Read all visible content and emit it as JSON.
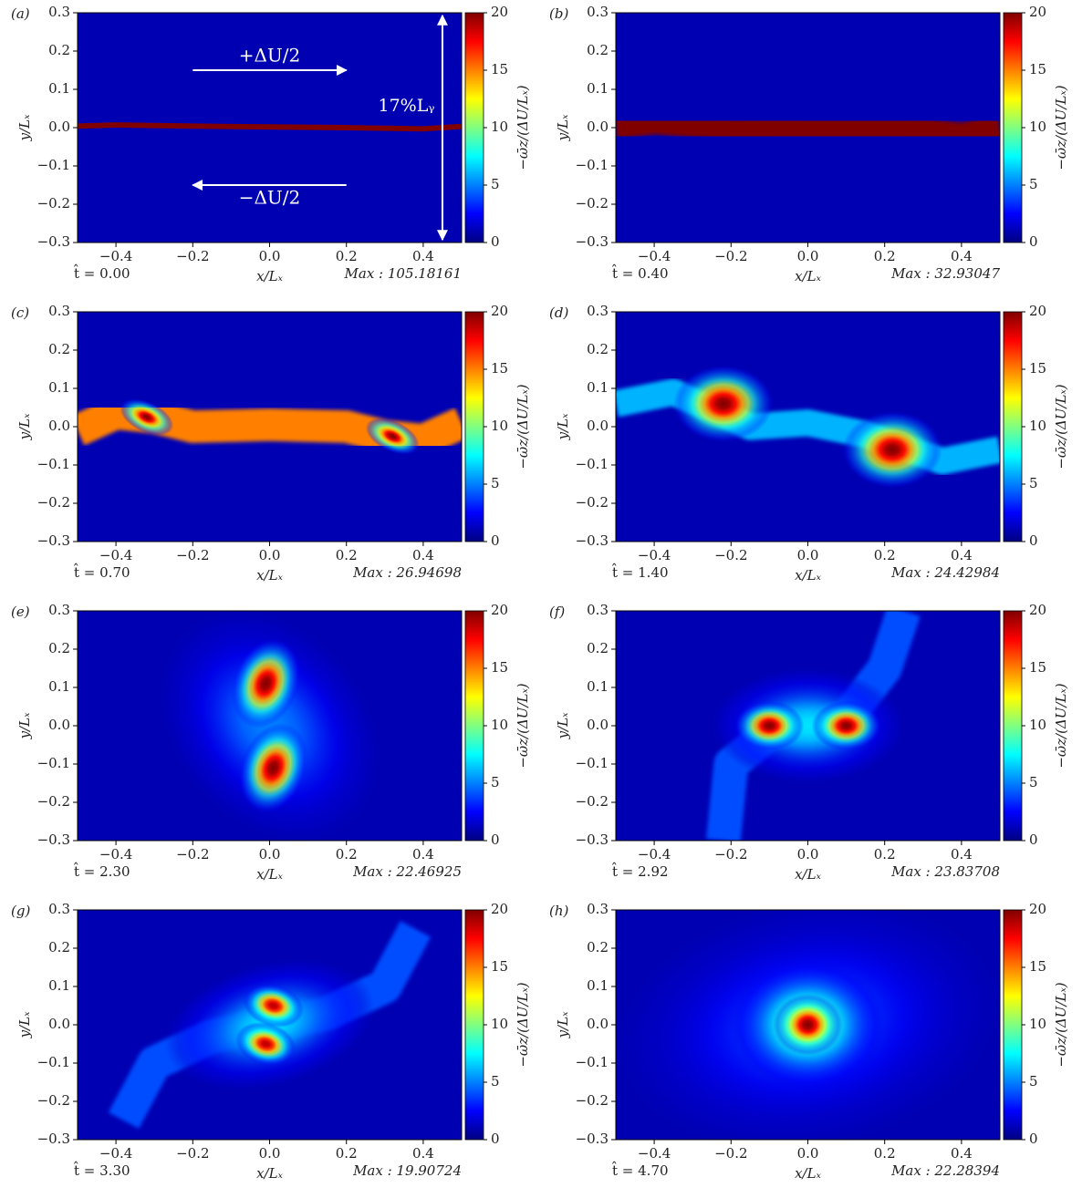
{
  "chart_data": [
    {
      "type": "heatmap",
      "label": "(a)",
      "xlabel": "x/Lₓ",
      "ylabel": "y/Lₓ",
      "colorbar_label": "−ω̄z/(ΔU/Lₓ)",
      "colormap": "jet",
      "time_label": "t̂ = 0.00",
      "max_label": "Max : 105.18161",
      "upper_velocity_label": "+ΔU/2",
      "lower_velocity_label": "−ΔU/2",
      "height_label": "17%Lᵧ",
      "xlim": [
        -0.5,
        0.5
      ],
      "ylim": [
        -0.3,
        0.3
      ],
      "clim": [
        0,
        20
      ],
      "background_value": 1,
      "xticks": [
        {
          "value": -0.4,
          "label": "−0.4"
        },
        {
          "value": -0.2,
          "label": "−0.2"
        },
        {
          "value": 0,
          "label": "0.0"
        },
        0.2,
        0.4
      ],
      "yticks": [
        {
          "value": -0.3,
          "label": "−0.3"
        },
        {
          "value": -0.2,
          "label": "−0.2"
        },
        {
          "value": -0.1,
          "label": "−0.1"
        },
        {
          "value": 0,
          "label": "0.0"
        },
        0.1,
        0.2,
        0.3
      ],
      "cticks": [
        0,
        5,
        10,
        15,
        20
      ],
      "bands": [
        {
          "x": [
            -0.5,
            -0.4,
            -0.2,
            0,
            0.2,
            0.4,
            0.5
          ],
          "y": [
            0.004,
            0.007,
            0.004,
            0.002,
            0,
            -0.003,
            0.003
          ],
          "width": 0.014,
          "peak": 20
        }
      ],
      "blobs": []
    },
    {
      "type": "heatmap",
      "label": "(b)",
      "xlabel": "x/Lₓ",
      "ylabel": "y/Lₓ",
      "colorbar_label": "−ω̄z/(ΔU/Lₓ)",
      "colormap": "jet",
      "time_label": "t̂ = 0.40",
      "max_label": "Max : 32.93047",
      "xlim": [
        -0.5,
        0.5
      ],
      "ylim": [
        -0.3,
        0.3
      ],
      "clim": [
        0,
        20
      ],
      "background_value": 1,
      "xticks": [
        {
          "value": -0.4,
          "label": "−0.4"
        },
        {
          "value": -0.2,
          "label": "−0.2"
        },
        {
          "value": 0,
          "label": "0.0"
        },
        0.2,
        0.4
      ],
      "yticks": [
        {
          "value": -0.3,
          "label": "−0.3"
        },
        {
          "value": -0.2,
          "label": "−0.2"
        },
        {
          "value": -0.1,
          "label": "−0.1"
        },
        {
          "value": 0,
          "label": "0.0"
        },
        0.1,
        0.2,
        0.3
      ],
      "cticks": [
        0,
        5,
        10,
        15,
        20
      ],
      "bands": [
        {
          "x": [
            -0.5,
            -0.4,
            -0.3,
            -0.2,
            0,
            0.2,
            0.3,
            0.4,
            0.5
          ],
          "y": [
            0.0,
            0.012,
            0.004,
            -0.003,
            -0.002,
            0.0,
            -0.004,
            -0.016,
            0.003
          ],
          "width": 0.06,
          "peak": 20
        }
      ],
      "blobs": []
    },
    {
      "type": "heatmap",
      "label": "(c)",
      "xlabel": "x/Lₓ",
      "ylabel": "y/Lₓ",
      "colorbar_label": "−ω̄z/(ΔU/Lₓ)",
      "colormap": "jet",
      "time_label": "t̂ = 0.70",
      "max_label": "Max : 26.94698",
      "xlim": [
        -0.5,
        0.5
      ],
      "ylim": [
        -0.3,
        0.3
      ],
      "clim": [
        0,
        20
      ],
      "background_value": 1,
      "xticks": [
        {
          "value": -0.4,
          "label": "−0.4"
        },
        {
          "value": -0.2,
          "label": "−0.2"
        },
        {
          "value": 0,
          "label": "0.0"
        },
        0.2,
        0.4
      ],
      "yticks": [
        {
          "value": -0.3,
          "label": "−0.3"
        },
        {
          "value": -0.2,
          "label": "−0.2"
        },
        {
          "value": -0.1,
          "label": "−0.1"
        },
        {
          "value": 0,
          "label": "0.0"
        },
        0.1,
        0.2,
        0.3
      ],
      "cticks": [
        0,
        5,
        10,
        15,
        20
      ],
      "bands": [
        {
          "x": [
            -0.5,
            -0.4,
            -0.3,
            -0.2,
            0,
            0.2,
            0.3,
            0.4,
            0.5
          ],
          "y": [
            -0.01,
            0.035,
            0.025,
            0.0,
            0.005,
            0.0,
            -0.025,
            -0.035,
            0.01
          ],
          "width": 0.085,
          "peak": 15
        }
      ],
      "blobs": [
        {
          "x": -0.32,
          "y": 0.025,
          "rx": 0.075,
          "ry": 0.04,
          "angle": -25,
          "peak": 20
        },
        {
          "x": 0.32,
          "y": -0.025,
          "rx": 0.075,
          "ry": 0.04,
          "angle": -25,
          "peak": 20
        }
      ]
    },
    {
      "type": "heatmap",
      "label": "(d)",
      "xlabel": "x/Lₓ",
      "ylabel": "y/Lₓ",
      "colorbar_label": "−ω̄z/(ΔU/Lₓ)",
      "colormap": "jet",
      "time_label": "t̂ = 1.40",
      "max_label": "Max : 24.42984",
      "xlim": [
        -0.5,
        0.5
      ],
      "ylim": [
        -0.3,
        0.3
      ],
      "clim": [
        0,
        20
      ],
      "background_value": 1,
      "xticks": [
        {
          "value": -0.4,
          "label": "−0.4"
        },
        {
          "value": -0.2,
          "label": "−0.2"
        },
        {
          "value": 0,
          "label": "0.0"
        },
        0.2,
        0.4
      ],
      "yticks": [
        {
          "value": -0.3,
          "label": "−0.3"
        },
        {
          "value": -0.2,
          "label": "−0.2"
        },
        {
          "value": -0.1,
          "label": "−0.1"
        },
        {
          "value": 0,
          "label": "0.0"
        },
        0.1,
        0.2,
        0.3
      ],
      "cticks": [
        0,
        5,
        10,
        15,
        20
      ],
      "bands": [
        {
          "x": [
            -0.5,
            -0.35,
            -0.15,
            0,
            0.15,
            0.35,
            0.5
          ],
          "y": [
            0.06,
            0.09,
            0.0,
            0.01,
            -0.02,
            -0.09,
            -0.06
          ],
          "width": 0.07,
          "peak": 6
        }
      ],
      "blobs": [
        {
          "x": -0.22,
          "y": 0.06,
          "rx": 0.13,
          "ry": 0.1,
          "angle": 0,
          "peak": 20
        },
        {
          "x": 0.22,
          "y": -0.06,
          "rx": 0.13,
          "ry": 0.1,
          "angle": 0,
          "peak": 20
        }
      ]
    },
    {
      "type": "heatmap",
      "label": "(e)",
      "xlabel": "x/Lₓ",
      "ylabel": "y/Lₓ",
      "colorbar_label": "−ω̄z/(ΔU/Lₓ)",
      "colormap": "jet",
      "time_label": "t̂ = 2.30",
      "max_label": "Max : 22.46925",
      "xlim": [
        -0.5,
        0.5
      ],
      "ylim": [
        -0.3,
        0.3
      ],
      "clim": [
        0,
        20
      ],
      "background_value": 1,
      "xticks": [
        {
          "value": -0.4,
          "label": "−0.4"
        },
        {
          "value": -0.2,
          "label": "−0.2"
        },
        {
          "value": 0,
          "label": "0.0"
        },
        0.2,
        0.4
      ],
      "yticks": [
        {
          "value": -0.3,
          "label": "−0.3"
        },
        {
          "value": -0.2,
          "label": "−0.2"
        },
        {
          "value": -0.1,
          "label": "−0.1"
        },
        {
          "value": 0,
          "label": "0.0"
        },
        0.1,
        0.2,
        0.3
      ],
      "cticks": [
        0,
        5,
        10,
        15,
        20
      ],
      "bands": [],
      "blobs": [
        {
          "x": 0.0,
          "y": 0.0,
          "rx": 0.33,
          "ry": 0.25,
          "angle": -50,
          "peak": 5
        },
        {
          "x": -0.01,
          "y": 0.11,
          "rx": 0.085,
          "ry": 0.12,
          "angle": -20,
          "peak": 20
        },
        {
          "x": 0.01,
          "y": -0.11,
          "rx": 0.085,
          "ry": 0.12,
          "angle": -20,
          "peak": 20
        }
      ]
    },
    {
      "type": "heatmap",
      "label": "(f)",
      "xlabel": "x/Lₓ",
      "ylabel": "y/Lₓ",
      "colorbar_label": "−ω̄z/(ΔU/Lₓ)",
      "colormap": "jet",
      "time_label": "t̂ = 2.92",
      "max_label": "Max : 23.83708",
      "xlim": [
        -0.5,
        0.5
      ],
      "ylim": [
        -0.3,
        0.3
      ],
      "clim": [
        0,
        20
      ],
      "background_value": 1,
      "xticks": [
        {
          "value": -0.4,
          "label": "−0.4"
        },
        {
          "value": -0.2,
          "label": "−0.2"
        },
        {
          "value": 0,
          "label": "0.0"
        },
        0.2,
        0.4
      ],
      "yticks": [
        {
          "value": -0.3,
          "label": "−0.3"
        },
        {
          "value": -0.2,
          "label": "−0.2"
        },
        {
          "value": -0.1,
          "label": "−0.1"
        },
        {
          "value": 0,
          "label": "0.0"
        },
        0.1,
        0.2,
        0.3
      ],
      "cticks": [
        0,
        5,
        10,
        15,
        20
      ],
      "bands": [
        {
          "x": [
            -0.22,
            -0.2,
            -0.1,
            0.1,
            0.2,
            0.25
          ],
          "y": [
            -0.3,
            -0.1,
            -0.02,
            0.02,
            0.15,
            0.3
          ],
          "width": 0.09,
          "peak": 4
        }
      ],
      "blobs": [
        {
          "x": 0.0,
          "y": 0.0,
          "rx": 0.25,
          "ry": 0.15,
          "angle": 0,
          "peak": 7
        },
        {
          "x": -0.1,
          "y": 0.0,
          "rx": 0.09,
          "ry": 0.065,
          "angle": 0,
          "peak": 20
        },
        {
          "x": 0.1,
          "y": 0.0,
          "rx": 0.09,
          "ry": 0.065,
          "angle": 0,
          "peak": 20
        }
      ]
    },
    {
      "type": "heatmap",
      "label": "(g)",
      "xlabel": "x/Lₓ",
      "ylabel": "y/Lₓ",
      "colorbar_label": "−ω̄z/(ΔU/Lₓ)",
      "colormap": "jet",
      "time_label": "t̂ = 3.30",
      "max_label": "Max : 19.90724",
      "xlim": [
        -0.5,
        0.5
      ],
      "ylim": [
        -0.3,
        0.3
      ],
      "clim": [
        0,
        20
      ],
      "background_value": 1,
      "xticks": [
        {
          "value": -0.4,
          "label": "−0.4"
        },
        {
          "value": -0.2,
          "label": "−0.2"
        },
        {
          "value": 0,
          "label": "0.0"
        },
        0.2,
        0.4
      ],
      "yticks": [
        {
          "value": -0.3,
          "label": "−0.3"
        },
        {
          "value": -0.2,
          "label": "−0.2"
        },
        {
          "value": -0.1,
          "label": "−0.1"
        },
        {
          "value": 0,
          "label": "0.0"
        },
        0.1,
        0.2,
        0.3
      ],
      "cticks": [
        0,
        5,
        10,
        15,
        20
      ],
      "bands": [
        {
          "x": [
            -0.38,
            -0.3,
            -0.15,
            0.15,
            0.3,
            0.38
          ],
          "y": [
            -0.25,
            -0.1,
            -0.03,
            0.03,
            0.1,
            0.25
          ],
          "width": 0.09,
          "peak": 4
        }
      ],
      "blobs": [
        {
          "x": 0.0,
          "y": 0.0,
          "rx": 0.28,
          "ry": 0.16,
          "angle": 15,
          "peak": 7
        },
        {
          "x": 0.01,
          "y": 0.05,
          "rx": 0.08,
          "ry": 0.055,
          "angle": -15,
          "peak": 19
        },
        {
          "x": -0.01,
          "y": -0.05,
          "rx": 0.08,
          "ry": 0.055,
          "angle": -15,
          "peak": 19
        }
      ]
    },
    {
      "type": "heatmap",
      "label": "(h)",
      "xlabel": "x/Lₓ",
      "ylabel": "y/Lₓ",
      "colorbar_label": "−ω̄z/(ΔU/Lₓ)",
      "colormap": "jet",
      "time_label": "t̂ = 4.70",
      "max_label": "Max : 22.28394",
      "xlim": [
        -0.5,
        0.5
      ],
      "ylim": [
        -0.3,
        0.3
      ],
      "clim": [
        0,
        20
      ],
      "background_value": 1,
      "xticks": [
        {
          "value": -0.4,
          "label": "−0.4"
        },
        {
          "value": -0.2,
          "label": "−0.2"
        },
        {
          "value": 0,
          "label": "0.0"
        },
        0.2,
        0.4
      ],
      "yticks": [
        {
          "value": -0.3,
          "label": "−0.3"
        },
        {
          "value": -0.2,
          "label": "−0.2"
        },
        {
          "value": -0.1,
          "label": "−0.1"
        },
        {
          "value": 0,
          "label": "0.0"
        },
        0.1,
        0.2,
        0.3
      ],
      "cticks": [
        0,
        5,
        10,
        15,
        20
      ],
      "bands": [],
      "blobs": [
        {
          "x": 0.0,
          "y": 0.0,
          "rx": 0.5,
          "ry": 0.32,
          "angle": 10,
          "peak": 4
        },
        {
          "x": 0.0,
          "y": 0.0,
          "rx": 0.2,
          "ry": 0.17,
          "angle": 0,
          "peak": 11
        },
        {
          "x": 0.0,
          "y": 0.0,
          "rx": 0.09,
          "ry": 0.08,
          "angle": 0,
          "peak": 20
        }
      ]
    }
  ]
}
